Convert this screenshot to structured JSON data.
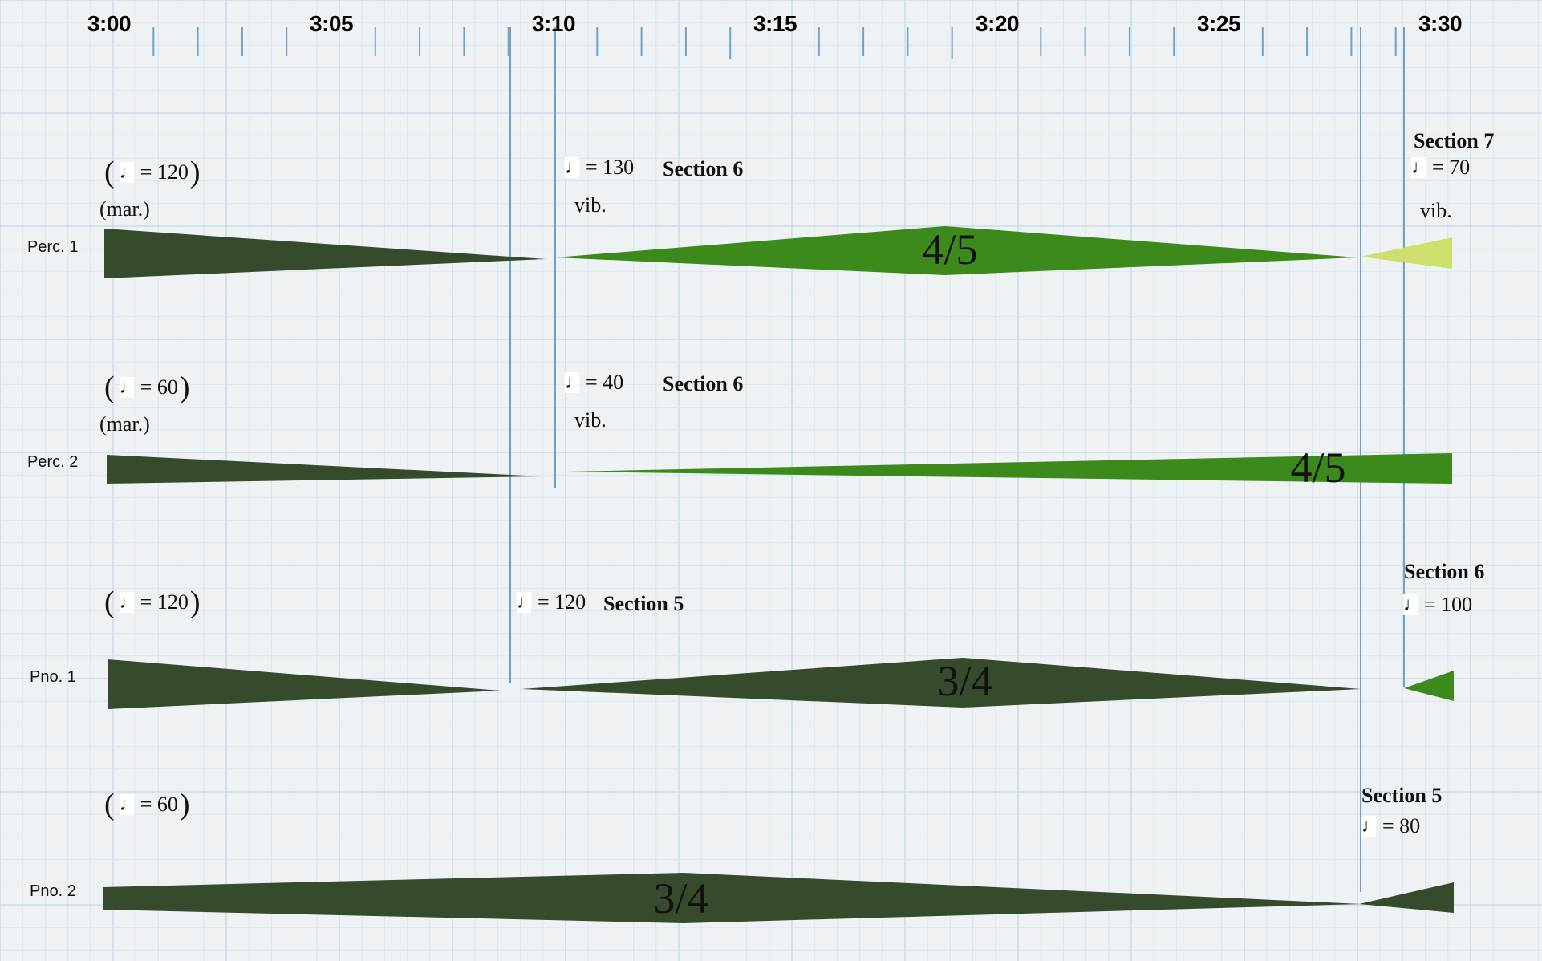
{
  "time_axis": {
    "labels": [
      "3:00",
      "3:05",
      "3:10",
      "3:15",
      "3:20",
      "3:25",
      "3:30"
    ]
  },
  "colors": {
    "dark": "#364a2c",
    "mid": "#3d8a1c",
    "light": "#cde06c",
    "rule": "#6fa2c6",
    "grid_major": "#c9dbe6",
    "grid_minor": "#dbe6ec"
  },
  "instruments": [
    {
      "label": "Perc. 1",
      "tempo_start": "= 120",
      "technique_start": "(mar.)",
      "events": [
        {
          "tempo": "= 130",
          "section": "Section 6",
          "technique": "vib."
        },
        {
          "tempo": "= 70",
          "section": "Section 7",
          "technique": "vib."
        }
      ],
      "marks": [
        "4/5"
      ]
    },
    {
      "label": "Perc. 2",
      "tempo_start": "= 60",
      "technique_start": "(mar.)",
      "events": [
        {
          "tempo": "= 40",
          "section": "Section 6",
          "technique": "vib."
        }
      ],
      "marks": [
        "4/5"
      ]
    },
    {
      "label": "Pno. 1",
      "tempo_start": "= 120",
      "events": [
        {
          "tempo": "= 120",
          "section": "Section 5"
        },
        {
          "tempo": "= 100",
          "section": "Section 6"
        }
      ],
      "marks": [
        "3/4"
      ]
    },
    {
      "label": "Pno. 2",
      "tempo_start": "= 60",
      "events": [
        {
          "tempo": "= 80",
          "section": "Section 5"
        }
      ],
      "marks": [
        "3/4"
      ]
    }
  ]
}
